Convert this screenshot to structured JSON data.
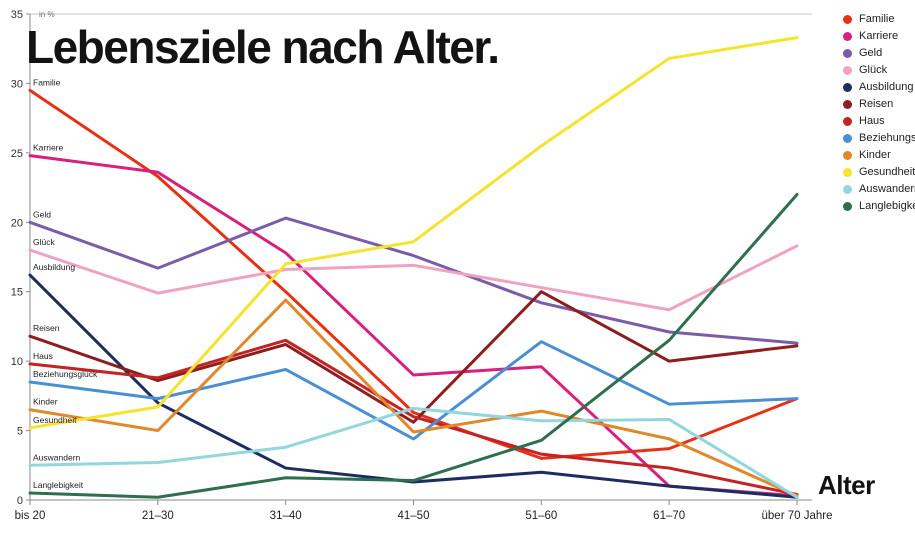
{
  "chart_data": {
    "type": "line",
    "title": "Lebensziele nach Alter.",
    "ylabel": "in %",
    "xlabel": "Alter",
    "ylim": [
      0,
      35
    ],
    "yticks": [
      0,
      5,
      10,
      15,
      20,
      25,
      30,
      35
    ],
    "grid": false,
    "legend_position": "top-right",
    "categories": [
      "bis 20",
      "21–30",
      "31–40",
      "41–50",
      "51–60",
      "61–70",
      "über 70 Jahre"
    ],
    "series": [
      {
        "name": "Familie",
        "color": "#e63214",
        "values": [
          29.5,
          23.3,
          15.0,
          6.3,
          3.0,
          3.7,
          7.3
        ]
      },
      {
        "name": "Karriere",
        "color": "#d6217e",
        "values": [
          24.8,
          23.6,
          17.8,
          9.0,
          9.6,
          1.0,
          0.3
        ]
      },
      {
        "name": "Geld",
        "color": "#7a5ca8",
        "values": [
          20.0,
          16.7,
          20.3,
          17.6,
          14.2,
          12.1,
          11.3
        ]
      },
      {
        "name": "Glück",
        "color": "#f0a2c2",
        "values": [
          18.0,
          14.9,
          16.6,
          16.9,
          15.3,
          13.7,
          18.3
        ]
      },
      {
        "name": "Ausbildung",
        "color": "#1d2d62",
        "values": [
          16.2,
          7.0,
          2.3,
          1.3,
          2.0,
          1.0,
          0.2
        ]
      },
      {
        "name": "Reisen",
        "color": "#8e1d1d",
        "values": [
          11.8,
          8.6,
          11.2,
          5.6,
          15.0,
          10.0,
          11.1
        ]
      },
      {
        "name": "Haus",
        "color": "#c42323",
        "values": [
          9.8,
          8.8,
          11.5,
          6.0,
          3.3,
          2.3,
          0.4
        ]
      },
      {
        "name": "Beziehungsglück",
        "color": "#4a8fd3",
        "values": [
          8.5,
          7.3,
          9.4,
          4.4,
          11.4,
          6.9,
          7.3
        ]
      },
      {
        "name": "Kinder",
        "color": "#e1882b",
        "values": [
          6.5,
          5.0,
          14.4,
          4.9,
          6.4,
          4.4,
          0.3
        ]
      },
      {
        "name": "Gesundheit",
        "color": "#f6e32d",
        "values": [
          5.2,
          6.7,
          17.0,
          18.6,
          25.5,
          31.8,
          33.3
        ]
      },
      {
        "name": "Auswandern",
        "color": "#92d6de",
        "values": [
          2.5,
          2.7,
          3.8,
          6.6,
          5.7,
          5.8,
          0.2
        ]
      },
      {
        "name": "Langlebigkeit",
        "color": "#2e6f4f",
        "values": [
          0.5,
          0.2,
          1.6,
          1.4,
          4.3,
          11.5,
          22.0
        ]
      }
    ]
  }
}
